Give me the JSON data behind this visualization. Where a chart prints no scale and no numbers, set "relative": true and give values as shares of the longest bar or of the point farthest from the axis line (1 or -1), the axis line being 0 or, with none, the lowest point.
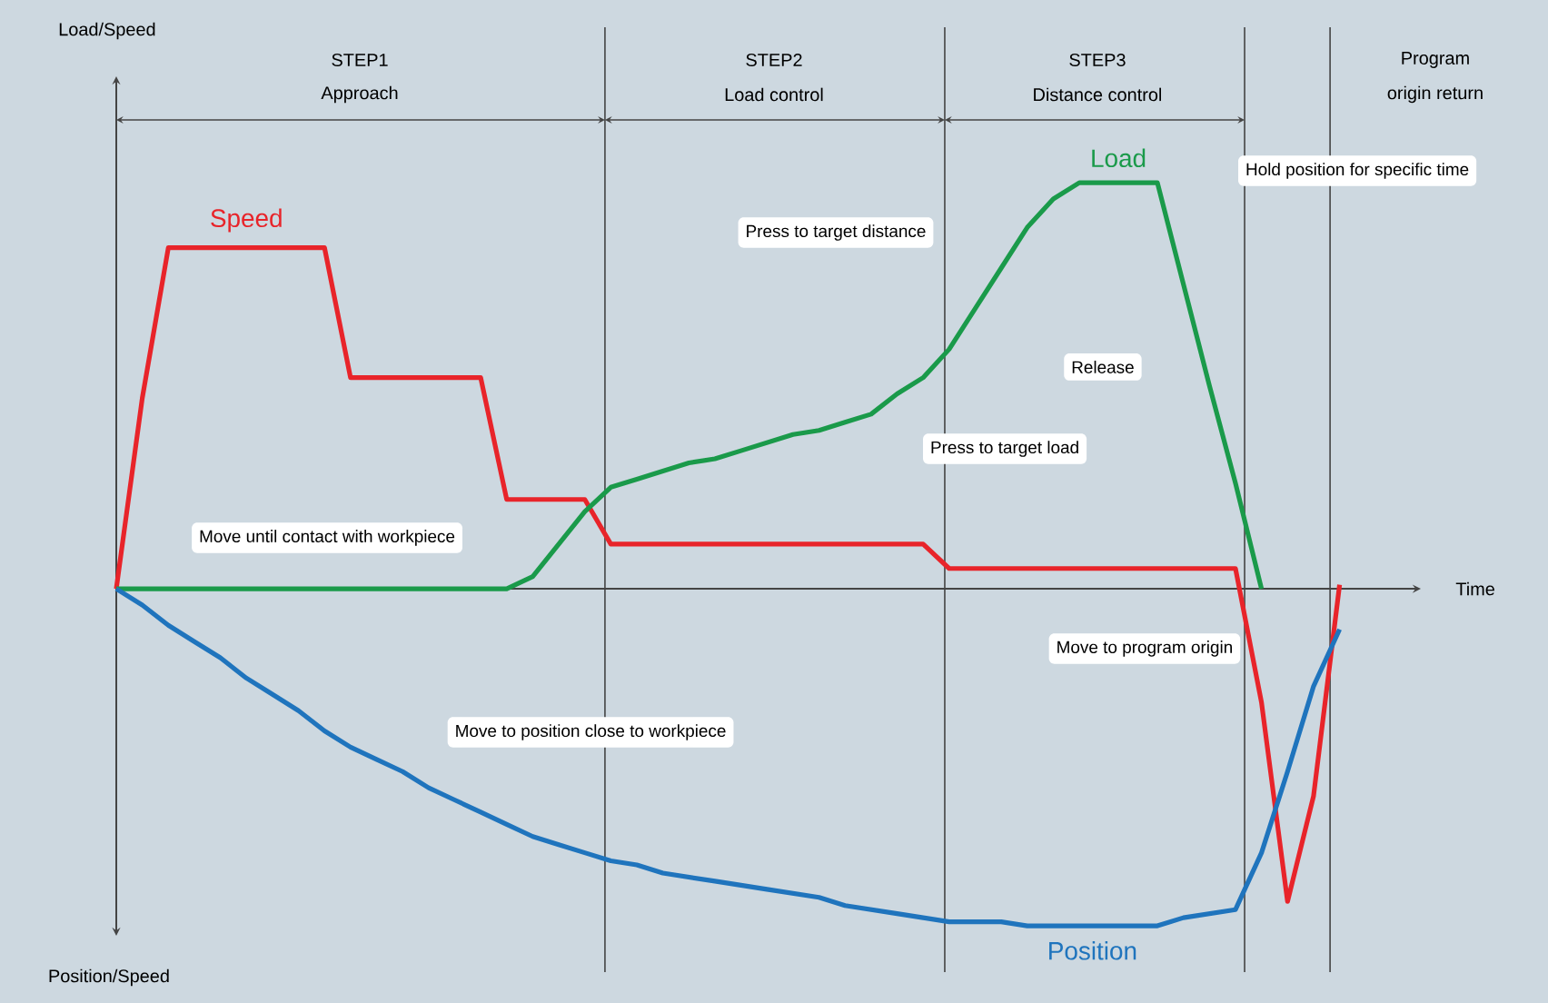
{
  "chart_data": {
    "type": "line",
    "relative": true,
    "categories": [
      null,
      null,
      null,
      null,
      null,
      null,
      null,
      null,
      null,
      null,
      null,
      null,
      null,
      null,
      null,
      null,
      null,
      null,
      null,
      null,
      null,
      null,
      null,
      null,
      null,
      null,
      null,
      null,
      null,
      null,
      null,
      null,
      null,
      null,
      null,
      null,
      null,
      null,
      null,
      null,
      null,
      null,
      null,
      null,
      null,
      null,
      null,
      null
    ],
    "series": [
      {
        "name": "Speed",
        "color": "#e8242a",
        "values": [
          0,
          0.47,
          0.84,
          0.84,
          0.84,
          0.84,
          0.84,
          0.84,
          0.84,
          0.52,
          0.52,
          0.52,
          0.52,
          0.52,
          0.52,
          0.22,
          0.22,
          0.22,
          0.22,
          0.11,
          0.11,
          0.11,
          0.11,
          0.11,
          0.11,
          0.11,
          0.11,
          0.11,
          0.11,
          0.11,
          0.11,
          0.11,
          0.05,
          0.05,
          0.05,
          0.05,
          0.05,
          0.05,
          0.05,
          0.05,
          0.05,
          0.05,
          0.05,
          0.05,
          -0.28,
          -0.77,
          -0.51,
          0.01
        ]
      },
      {
        "name": "Load",
        "color": "#1a9a4a",
        "values": [
          0,
          0,
          0,
          0,
          0,
          0,
          0,
          0,
          0,
          0,
          0,
          0,
          0,
          0,
          0,
          0,
          0.03,
          0.11,
          0.19,
          0.25,
          0.27,
          0.29,
          0.31,
          0.32,
          0.34,
          0.36,
          0.38,
          0.39,
          0.41,
          0.43,
          0.48,
          0.52,
          0.59,
          0.69,
          0.79,
          0.89,
          0.96,
          1,
          1,
          1,
          1,
          0.75,
          0.5,
          0.26,
          0,
          null,
          null,
          null
        ]
      },
      {
        "name": "Position",
        "color": "#1f74bd",
        "values": [
          0,
          -0.04,
          -0.09,
          -0.13,
          -0.17,
          -0.22,
          -0.26,
          -0.3,
          -0.35,
          -0.39,
          -0.42,
          -0.45,
          -0.49,
          -0.52,
          -0.55,
          -0.58,
          -0.61,
          -0.63,
          -0.65,
          -0.67,
          -0.68,
          -0.7,
          -0.71,
          -0.72,
          -0.73,
          -0.74,
          -0.75,
          -0.76,
          -0.78,
          -0.79,
          -0.8,
          -0.81,
          -0.82,
          -0.82,
          -0.82,
          -0.83,
          -0.83,
          -0.83,
          -0.83,
          -0.83,
          -0.83,
          -0.81,
          -0.8,
          -0.79,
          -0.65,
          -0.45,
          -0.24,
          -0.1
        ]
      }
    ],
    "annotations": [
      "Load/Speed",
      "Position/Speed",
      "Time",
      "STEP1",
      "Approach",
      "STEP2",
      "Load control",
      "STEP3",
      "Distance control",
      "Program",
      "origin return",
      "Move until contact with workpiece",
      "Move to position close to workpiece",
      "Press to target distance",
      "Hold position for specific time",
      "Release",
      "Press to target load",
      "Move to program origin"
    ]
  }
}
